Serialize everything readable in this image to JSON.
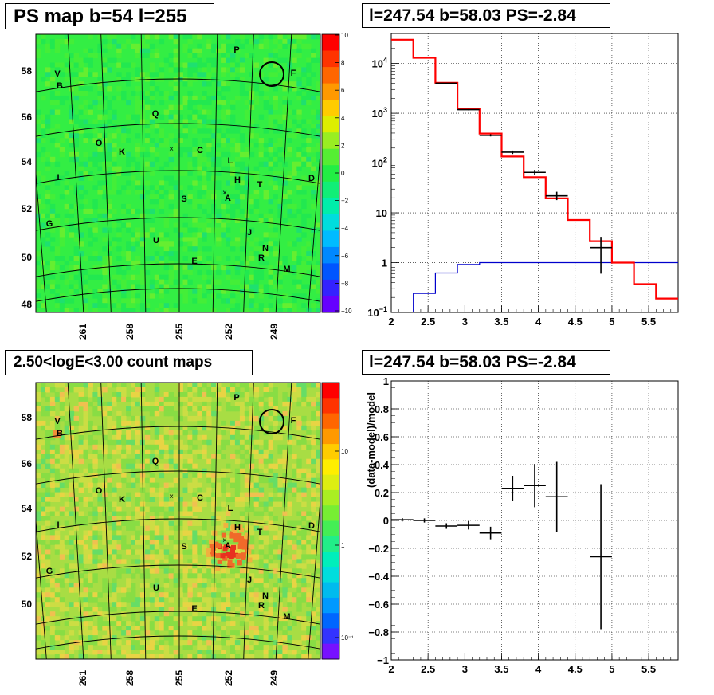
{
  "panels": {
    "ps_map": {
      "title": "PS map b=54 l=255",
      "map_labels": [
        "P",
        "F",
        "V",
        "B",
        "Q",
        "O",
        "K",
        "C",
        "L",
        "H",
        "T",
        "I",
        "D",
        "A",
        "S",
        "G",
        "J",
        "N",
        "R",
        "U",
        "E",
        "M"
      ],
      "x_ticks": [
        "261",
        "258",
        "255",
        "252",
        "249"
      ],
      "y_ticks": [
        "48",
        "50",
        "52",
        "54",
        "56",
        "58"
      ],
      "colorbar_ticks": [
        "10",
        "8",
        "6",
        "4",
        "2",
        "0",
        "−2",
        "−4",
        "−6",
        "−8",
        "−10"
      ]
    },
    "count_map": {
      "title": "2.50<logE<3.00 count maps",
      "map_labels": [
        "P",
        "F",
        "V",
        "B",
        "Q",
        "O",
        "K",
        "C",
        "L",
        "H",
        "T",
        "I",
        "D",
        "A",
        "S",
        "G",
        "J",
        "N",
        "R",
        "U",
        "E",
        "M"
      ],
      "x_ticks": [
        "261",
        "258",
        "255",
        "252",
        "249"
      ],
      "y_ticks": [
        "50",
        "52",
        "54",
        "56",
        "58"
      ],
      "colorbar_ticks": [
        "10",
        "1",
        "10⁻¹"
      ]
    },
    "spectrum": {
      "title": "l=247.54 b=58.03 PS=-2.84"
    },
    "residual": {
      "title": "l=247.54 b=58.03 PS=-2.84"
    }
  },
  "chart_data": [
    {
      "type": "heatmap",
      "title": "PS map b=54 l=255",
      "colorbar_range": [
        -10,
        10
      ],
      "x_ticks": [
        261,
        258,
        255,
        252,
        249
      ],
      "y_ticks": [
        48,
        50,
        52,
        54,
        56,
        58
      ],
      "colors": {
        "background": "#22ee44",
        "colorbar": [
          "#6600ff",
          "#0040ff",
          "#0099ff",
          "#00ccee",
          "#00eecc",
          "#22ee66",
          "#33ee33",
          "#aaee22",
          "#ffee00",
          "#ffaa00",
          "#ff5500",
          "#ff0000"
        ]
      }
    },
    {
      "type": "step",
      "title": "l=247.54 b=58.03 PS=-2.84",
      "yscale": "log",
      "xlim": [
        2,
        5.9
      ],
      "ylim": [
        0.1,
        40000
      ],
      "x_ticks": [
        "2",
        "2.5",
        "3",
        "3.5",
        "4",
        "4.5",
        "5",
        "5.5"
      ],
      "y_ticks": [
        "10⁻¹",
        "1",
        "10",
        "10²",
        "10³",
        "10⁴"
      ],
      "bin_edges": [
        2.0,
        2.3,
        2.6,
        2.9,
        3.2,
        3.5,
        3.8,
        4.1,
        4.4,
        4.7,
        5.0,
        5.3,
        5.6,
        5.9
      ],
      "model_total": [
        30000,
        13000,
        4100,
        1220,
        390,
        135,
        52,
        19.5,
        7.2,
        2.7,
        1.0,
        0.37,
        0.19
      ],
      "point_source": [
        0.24,
        0.62,
        0.92,
        1.0,
        1.0,
        1.0,
        1.0,
        1.0,
        1.0,
        1.0,
        1.0,
        1.0,
        1.0
      ],
      "data_points": [
        {
          "x": 2.75,
          "y": 4000,
          "xerr": 0.15,
          "ylo": 3940,
          "yhi": 4060
        },
        {
          "x": 3.05,
          "y": 1180,
          "xerr": 0.15,
          "ylo": 1150,
          "yhi": 1210
        },
        {
          "x": 3.35,
          "y": 360,
          "xerr": 0.15,
          "ylo": 342,
          "yhi": 378
        },
        {
          "x": 3.65,
          "y": 165,
          "xerr": 0.15,
          "ylo": 152,
          "yhi": 178
        },
        {
          "x": 3.95,
          "y": 65,
          "xerr": 0.15,
          "ylo": 57,
          "yhi": 73
        },
        {
          "x": 4.25,
          "y": 22,
          "xerr": 0.15,
          "ylo": 18,
          "yhi": 26.5
        },
        {
          "x": 4.85,
          "y": 2.0,
          "xerr": 0.15,
          "ylo": 0.6,
          "yhi": 3.3
        }
      ],
      "colors": {
        "model_total": "#ff0000",
        "point_source": "#0000cc",
        "data": "#000000"
      }
    },
    {
      "type": "heatmap",
      "title": "2.50<logE<3.00 count maps",
      "colorbar_scale": "log",
      "x_ticks": [
        261,
        258,
        255,
        252,
        249
      ],
      "y_ticks": [
        50,
        52,
        54,
        56,
        58
      ],
      "colors": {
        "background": "#aadd44",
        "hotspot": "#ee4422"
      }
    },
    {
      "type": "scatter",
      "title": "l=247.54 b=58.03 PS=-2.84",
      "ylabel": "(data-model)/model",
      "xlim": [
        2,
        5.9
      ],
      "ylim": [
        -1,
        1
      ],
      "x_ticks": [
        "2",
        "2.5",
        "3",
        "3.5",
        "4",
        "4.5",
        "5",
        "5.5"
      ],
      "y_ticks": [
        "1",
        "0.8",
        "0.6",
        "0.4",
        "0.2",
        "0",
        "−0.2",
        "−0.4",
        "−0.6",
        "−0.8",
        "−1"
      ],
      "points": [
        {
          "x": 2.15,
          "y": 0.005,
          "xerr": 0.15,
          "yerr": 0.012
        },
        {
          "x": 2.45,
          "y": 0.0,
          "xerr": 0.15,
          "yerr": 0.015
        },
        {
          "x": 2.75,
          "y": -0.04,
          "xerr": 0.15,
          "yerr": 0.02
        },
        {
          "x": 3.05,
          "y": -0.035,
          "xerr": 0.15,
          "yerr": 0.03
        },
        {
          "x": 3.35,
          "y": -0.09,
          "xerr": 0.15,
          "yerr": 0.045
        },
        {
          "x": 3.65,
          "y": 0.23,
          "xerr": 0.15,
          "yerr": 0.09
        },
        {
          "x": 3.95,
          "y": 0.25,
          "xerr": 0.15,
          "yerr": 0.155
        },
        {
          "x": 4.25,
          "y": 0.17,
          "xerr": 0.15,
          "yerr": 0.25
        },
        {
          "x": 4.85,
          "y": -0.26,
          "xerr": 0.15,
          "yerr": 0.52
        }
      ]
    }
  ]
}
